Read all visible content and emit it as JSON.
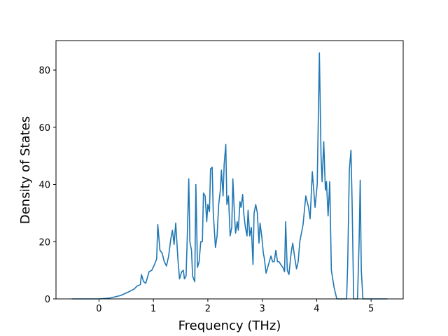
{
  "chart_data": {
    "type": "line",
    "xlabel": "Frequency (THz)",
    "ylabel": "Density of States",
    "x": [
      -0.5,
      0.0,
      0.2,
      0.4,
      0.55,
      0.65,
      0.7,
      0.76,
      0.78,
      0.82,
      0.86,
      0.92,
      0.97,
      1.02,
      1.06,
      1.08,
      1.12,
      1.16,
      1.2,
      1.24,
      1.28,
      1.32,
      1.35,
      1.38,
      1.41,
      1.45,
      1.48,
      1.52,
      1.55,
      1.57,
      1.6,
      1.62,
      1.65,
      1.67,
      1.7,
      1.72,
      1.76,
      1.78,
      1.81,
      1.84,
      1.87,
      1.9,
      1.92,
      1.95,
      1.98,
      2.0,
      2.03,
      2.05,
      2.08,
      2.1,
      2.14,
      2.17,
      2.2,
      2.23,
      2.25,
      2.28,
      2.3,
      2.33,
      2.35,
      2.38,
      2.41,
      2.44,
      2.46,
      2.49,
      2.51,
      2.54,
      2.56,
      2.59,
      2.61,
      2.64,
      2.66,
      2.69,
      2.72,
      2.74,
      2.77,
      2.8,
      2.83,
      2.85,
      2.88,
      2.91,
      2.94,
      2.96,
      2.99,
      3.02,
      3.04,
      3.07,
      3.1,
      3.13,
      3.16,
      3.19,
      3.22,
      3.25,
      3.28,
      3.31,
      3.34,
      3.38,
      3.41,
      3.43,
      3.46,
      3.49,
      3.53,
      3.56,
      3.6,
      3.63,
      3.66,
      3.69,
      3.75,
      3.8,
      3.85,
      3.88,
      3.92,
      3.97,
      4.01,
      4.05,
      4.08,
      4.1,
      4.13,
      4.16,
      4.18,
      4.21,
      4.24,
      4.27,
      4.32,
      4.37,
      4.55,
      4.57,
      4.6,
      4.63,
      4.65,
      4.68,
      4.75,
      4.78,
      4.8,
      4.82,
      4.85,
      5.3
    ],
    "series": [
      {
        "color": "#1f77b4",
        "values": [
          0,
          0,
          0.3,
          1.2,
          2.5,
          3.5,
          4.5,
          5,
          8.5,
          6,
          5.5,
          9.5,
          10,
          12,
          14,
          26,
          17,
          16,
          13,
          11.5,
          15,
          21,
          24,
          19,
          26.5,
          14,
          7,
          9.5,
          10,
          7,
          8,
          20,
          42,
          20,
          17,
          8,
          6,
          40,
          11,
          13,
          20,
          20,
          37,
          36,
          27,
          33,
          30.5,
          45.5,
          46,
          30,
          18,
          22,
          33,
          38,
          45,
          36,
          47,
          54,
          33,
          36,
          22,
          25,
          42,
          29,
          23,
          27,
          24,
          34,
          32,
          36.5,
          30,
          25,
          22,
          31,
          22,
          25,
          12,
          30,
          33,
          30,
          19.5,
          26.5,
          22,
          16,
          14,
          9,
          11,
          13,
          15,
          13,
          13,
          17,
          13,
          13,
          12,
          11,
          9.5,
          27,
          10,
          8.5,
          16,
          19.5,
          14,
          10.5,
          13,
          20,
          26,
          36,
          32,
          28,
          44.5,
          32,
          40,
          86,
          50,
          41,
          55,
          38,
          41,
          29,
          41,
          10,
          4,
          0,
          0,
          12,
          45,
          52,
          35,
          0,
          0,
          20,
          41.5,
          10,
          0,
          0
        ]
      }
    ],
    "xlim": [
      -0.79,
      5.59
    ],
    "ylim": [
      0,
      90.3
    ],
    "xticks": [
      0,
      1,
      2,
      3,
      4,
      5
    ],
    "yticks": [
      0,
      20,
      40,
      60,
      80
    ]
  }
}
